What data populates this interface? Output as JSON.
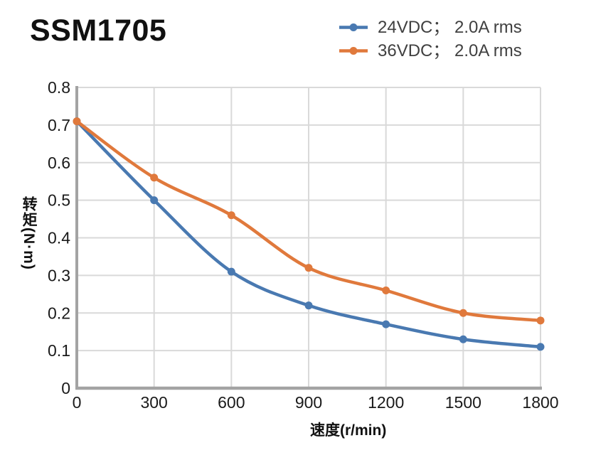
{
  "header": {
    "title": "SSM1705"
  },
  "chart_data": {
    "type": "line",
    "title": "SSM1705",
    "xlabel": "速度(r/min)",
    "ylabel": "转矩(N·m)",
    "x": [
      0,
      300,
      600,
      900,
      1200,
      1500,
      1800
    ],
    "xlim": [
      0,
      1800
    ],
    "ylim": [
      0,
      0.8
    ],
    "x_tick_labels": [
      "0",
      "300",
      "600",
      "900",
      "1200",
      "1500",
      "1800"
    ],
    "y_tick_values": [
      0,
      0.1,
      0.2,
      0.3,
      0.4,
      0.5,
      0.6,
      0.7,
      0.8
    ],
    "y_tick_labels": [
      "0",
      "0.1",
      "0.2",
      "0.3",
      "0.4",
      "0.5",
      "0.6",
      "0.7",
      "0.8"
    ],
    "grid": true,
    "legend_position": "top-right",
    "series": [
      {
        "name": "24VDC； 2.0A rms",
        "color": "#4979B1",
        "values": [
          0.71,
          0.5,
          0.31,
          0.22,
          0.17,
          0.13,
          0.11
        ]
      },
      {
        "name": "36VDC； 2.0A rms",
        "color": "#E0793C",
        "values": [
          0.71,
          0.56,
          0.46,
          0.32,
          0.26,
          0.2,
          0.18
        ]
      }
    ],
    "colors": {
      "grid": "#D9D9D9",
      "axis": "#A3A3A3",
      "tick_text": "#1A1A1A",
      "legend_text": "#404040",
      "title_text": "#111111"
    }
  }
}
